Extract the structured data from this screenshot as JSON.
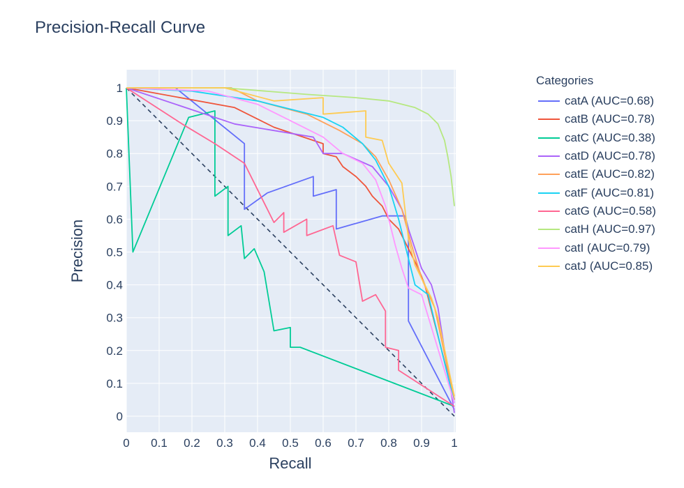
{
  "title": "Precision-Recall Curve",
  "chart_data": {
    "type": "line",
    "title": "Precision-Recall Curve",
    "xlabel": "Recall",
    "ylabel": "Precision",
    "xlim": [
      0,
      1
    ],
    "ylim": [
      0,
      1
    ],
    "x_ticks": [
      "0",
      "0.1",
      "0.2",
      "0.3",
      "0.4",
      "0.5",
      "0.6",
      "0.7",
      "0.8",
      "0.9",
      "1"
    ],
    "y_ticks": [
      "0",
      "0.1",
      "0.2",
      "0.3",
      "0.4",
      "0.5",
      "0.6",
      "0.7",
      "0.8",
      "0.9",
      "1"
    ],
    "grid": true,
    "legend_title": "Categories",
    "legend_position": "right",
    "baseline": {
      "style": "dashed",
      "color": "#2a3f5f",
      "points": [
        [
          0,
          1
        ],
        [
          1,
          0
        ]
      ]
    },
    "series": [
      {
        "name": "catA (AUC=0.68)",
        "color": "#636efa",
        "points": [
          [
            0,
            1
          ],
          [
            0.15,
            1
          ],
          [
            0.36,
            0.83
          ],
          [
            0.36,
            0.63
          ],
          [
            0.43,
            0.68
          ],
          [
            0.57,
            0.73
          ],
          [
            0.57,
            0.67
          ],
          [
            0.64,
            0.69
          ],
          [
            0.64,
            0.57
          ],
          [
            0.78,
            0.61
          ],
          [
            0.85,
            0.61
          ],
          [
            0.86,
            0.57
          ],
          [
            0.86,
            0.29
          ],
          [
            1,
            0.02
          ]
        ]
      },
      {
        "name": "catB (AUC=0.78)",
        "color": "#EF553B",
        "points": [
          [
            0,
            1
          ],
          [
            0.33,
            0.94
          ],
          [
            0.45,
            0.88
          ],
          [
            0.6,
            0.83
          ],
          [
            0.6,
            0.8
          ],
          [
            0.64,
            0.79
          ],
          [
            0.66,
            0.76
          ],
          [
            0.7,
            0.73
          ],
          [
            0.73,
            0.7
          ],
          [
            0.75,
            0.67
          ],
          [
            0.78,
            0.64
          ],
          [
            0.8,
            0.6
          ],
          [
            0.83,
            0.57
          ],
          [
            0.85,
            0.53
          ],
          [
            0.87,
            0.49
          ],
          [
            0.89,
            0.45
          ],
          [
            0.91,
            0.4
          ],
          [
            1,
            0.05
          ]
        ]
      },
      {
        "name": "catC (AUC=0.38)",
        "color": "#00cc96",
        "points": [
          [
            0,
            1
          ],
          [
            0.02,
            0.5
          ],
          [
            0.19,
            0.91
          ],
          [
            0.27,
            0.93
          ],
          [
            0.27,
            0.67
          ],
          [
            0.31,
            0.7
          ],
          [
            0.31,
            0.55
          ],
          [
            0.35,
            0.58
          ],
          [
            0.36,
            0.48
          ],
          [
            0.39,
            0.51
          ],
          [
            0.42,
            0.44
          ],
          [
            0.45,
            0.26
          ],
          [
            0.5,
            0.27
          ],
          [
            0.5,
            0.21
          ],
          [
            0.53,
            0.21
          ],
          [
            1,
            0.03
          ]
        ]
      },
      {
        "name": "catD (AUC=0.78)",
        "color": "#ab63fa",
        "points": [
          [
            0,
            1
          ],
          [
            0.33,
            0.89
          ],
          [
            0.57,
            0.85
          ],
          [
            0.6,
            0.8
          ],
          [
            0.66,
            0.8
          ],
          [
            0.75,
            0.76
          ],
          [
            0.8,
            0.7
          ],
          [
            0.84,
            0.63
          ],
          [
            0.87,
            0.54
          ],
          [
            0.9,
            0.45
          ],
          [
            0.93,
            0.4
          ],
          [
            0.95,
            0.33
          ],
          [
            1,
            0.01
          ]
        ]
      },
      {
        "name": "catE (AUC=0.82)",
        "color": "#FFA15A",
        "points": [
          [
            0,
            1
          ],
          [
            0.32,
            1
          ],
          [
            0.4,
            0.96
          ],
          [
            0.55,
            0.92
          ],
          [
            0.65,
            0.87
          ],
          [
            0.72,
            0.83
          ],
          [
            0.76,
            0.79
          ],
          [
            0.8,
            0.72
          ],
          [
            0.84,
            0.63
          ],
          [
            0.87,
            0.52
          ],
          [
            0.9,
            0.42
          ],
          [
            0.94,
            0.33
          ],
          [
            1,
            0.05
          ]
        ]
      },
      {
        "name": "catF (AUC=0.81)",
        "color": "#19d3f3",
        "points": [
          [
            0,
            1
          ],
          [
            0.2,
            0.99
          ],
          [
            0.4,
            0.96
          ],
          [
            0.6,
            0.91
          ],
          [
            0.66,
            0.88
          ],
          [
            0.72,
            0.83
          ],
          [
            0.76,
            0.78
          ],
          [
            0.8,
            0.7
          ],
          [
            0.83,
            0.6
          ],
          [
            0.86,
            0.48
          ],
          [
            0.88,
            0.4
          ],
          [
            0.92,
            0.37
          ],
          [
            1,
            0.04
          ]
        ]
      },
      {
        "name": "catG (AUC=0.58)",
        "color": "#FF6692",
        "points": [
          [
            0,
            1
          ],
          [
            0.17,
            0.89
          ],
          [
            0.27,
            0.83
          ],
          [
            0.36,
            0.77
          ],
          [
            0.45,
            0.59
          ],
          [
            0.48,
            0.62
          ],
          [
            0.48,
            0.56
          ],
          [
            0.55,
            0.6
          ],
          [
            0.55,
            0.55
          ],
          [
            0.63,
            0.58
          ],
          [
            0.65,
            0.49
          ],
          [
            0.7,
            0.47
          ],
          [
            0.72,
            0.35
          ],
          [
            0.76,
            0.37
          ],
          [
            0.79,
            0.32
          ],
          [
            0.79,
            0.21
          ],
          [
            0.83,
            0.2
          ],
          [
            0.83,
            0.14
          ],
          [
            1,
            0.03
          ]
        ]
      },
      {
        "name": "catH (AUC=0.97)",
        "color": "#B6E880",
        "points": [
          [
            0,
            1
          ],
          [
            0.3,
            1
          ],
          [
            0.55,
            0.98
          ],
          [
            0.7,
            0.97
          ],
          [
            0.8,
            0.96
          ],
          [
            0.88,
            0.94
          ],
          [
            0.92,
            0.92
          ],
          [
            0.95,
            0.89
          ],
          [
            0.97,
            0.84
          ],
          [
            0.98,
            0.79
          ],
          [
            0.99,
            0.73
          ],
          [
            1,
            0.64
          ]
        ]
      },
      {
        "name": "catI (AUC=0.79)",
        "color": "#FF97FF",
        "points": [
          [
            0,
            1
          ],
          [
            0.25,
            0.99
          ],
          [
            0.4,
            0.95
          ],
          [
            0.5,
            0.9
          ],
          [
            0.6,
            0.85
          ],
          [
            0.66,
            0.8
          ],
          [
            0.72,
            0.77
          ],
          [
            0.76,
            0.72
          ],
          [
            0.79,
            0.64
          ],
          [
            0.82,
            0.52
          ],
          [
            0.84,
            0.45
          ],
          [
            0.86,
            0.39
          ],
          [
            0.9,
            0.37
          ],
          [
            1,
            0.04
          ]
        ]
      },
      {
        "name": "catJ (AUC=0.85)",
        "color": "#FECB52",
        "points": [
          [
            0,
            1
          ],
          [
            0.3,
            1
          ],
          [
            0.45,
            0.96
          ],
          [
            0.6,
            0.97
          ],
          [
            0.6,
            0.92
          ],
          [
            0.73,
            0.93
          ],
          [
            0.73,
            0.85
          ],
          [
            0.78,
            0.84
          ],
          [
            0.8,
            0.77
          ],
          [
            0.84,
            0.71
          ],
          [
            0.86,
            0.54
          ],
          [
            0.88,
            0.46
          ],
          [
            0.9,
            0.42
          ],
          [
            0.93,
            0.36
          ],
          [
            0.95,
            0.3
          ],
          [
            1,
            0.06
          ]
        ]
      }
    ]
  }
}
